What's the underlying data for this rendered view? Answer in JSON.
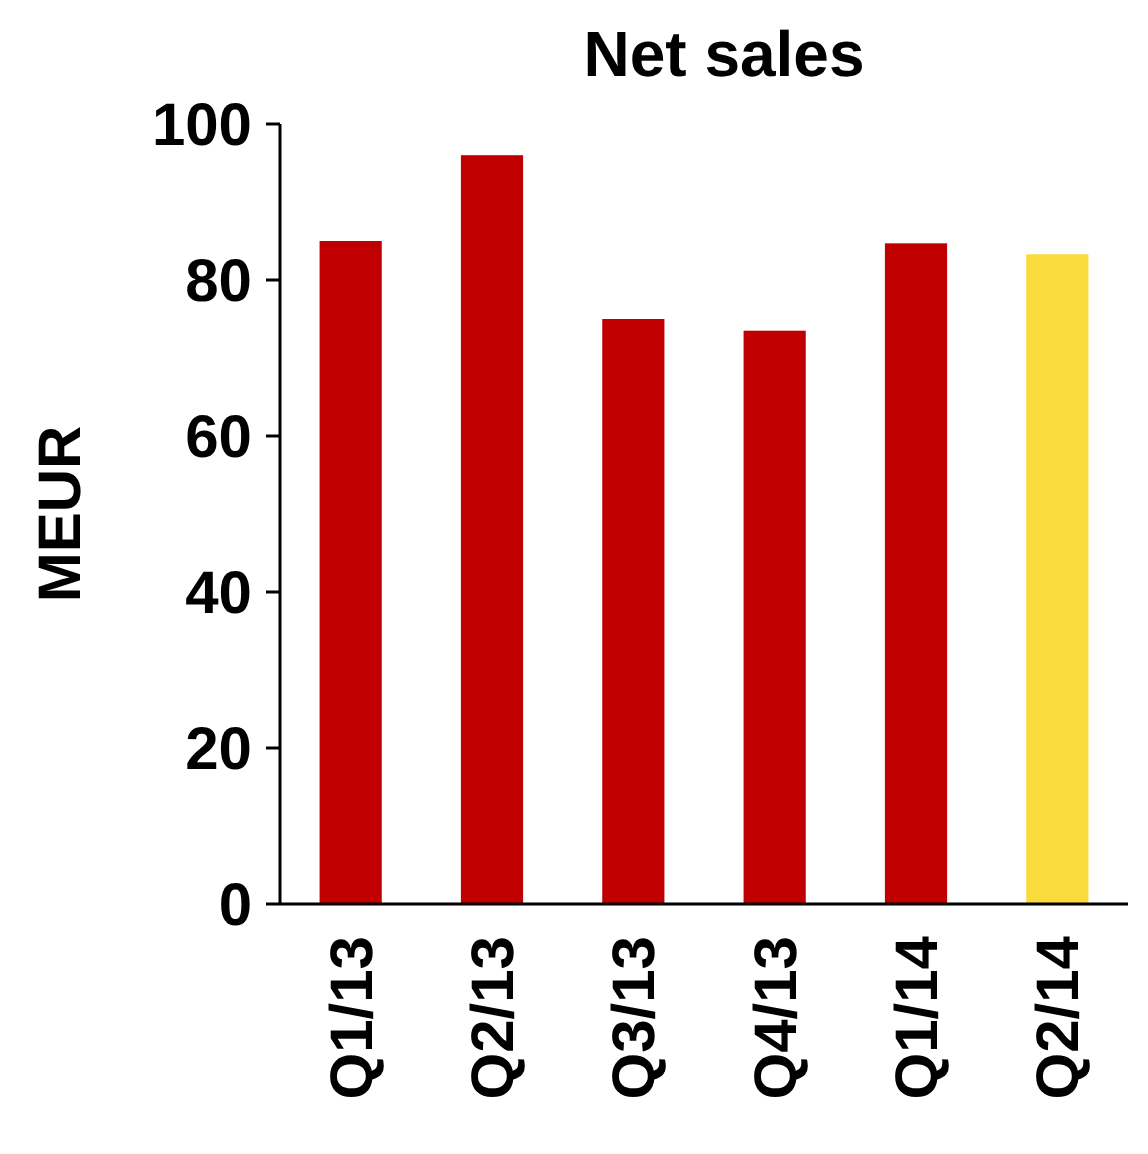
{
  "chart_data": {
    "type": "bar",
    "title": "Net sales",
    "ylabel": "MEUR",
    "categories": [
      "Q1/13",
      "Q2/13",
      "Q3/13",
      "Q4/13",
      "Q1/14",
      "Q2/14"
    ],
    "values": [
      85,
      96,
      75,
      73.5,
      84.7,
      83.3
    ],
    "colors": [
      "#c00000",
      "#c00000",
      "#c00000",
      "#c00000",
      "#c00000",
      "#fadb3c"
    ],
    "ylim": [
      0,
      100
    ],
    "yticks": [
      0,
      20,
      40,
      60,
      80,
      100
    ],
    "grid": false
  }
}
